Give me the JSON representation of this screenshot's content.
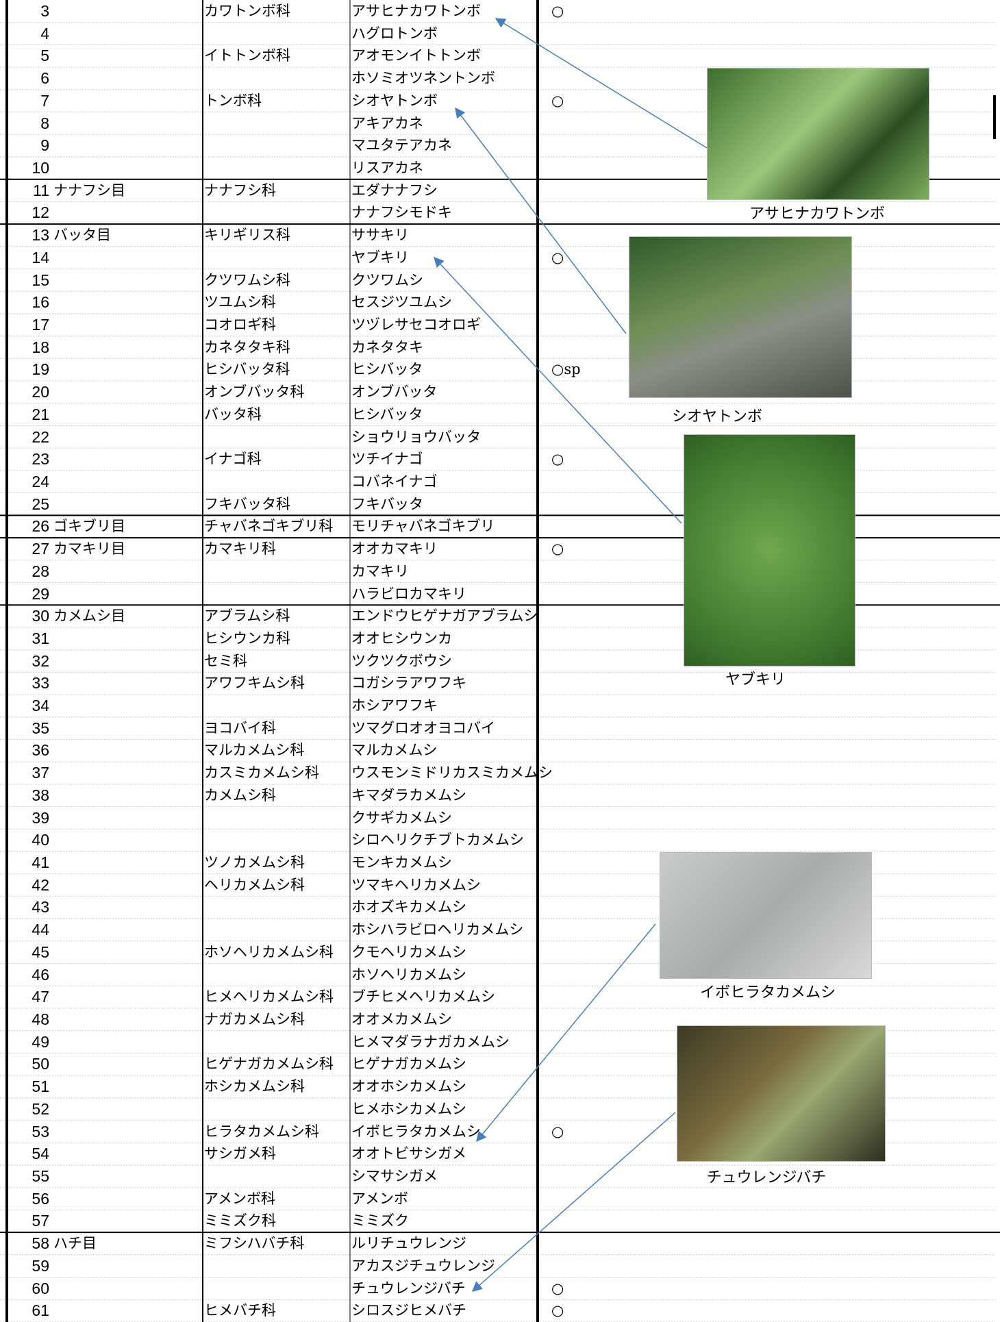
{
  "rows": [
    [
      3,
      null,
      "カワトンボ科",
      "アサヒナカワトンボ",
      "○"
    ],
    [
      4,
      null,
      null,
      "ハグロトンボ",
      null
    ],
    [
      5,
      null,
      "イトトンボ科",
      "アオモンイトトンボ",
      null
    ],
    [
      6,
      null,
      null,
      "ホソミオツネントンボ",
      null
    ],
    [
      7,
      null,
      "トンボ科",
      "シオヤトンボ",
      "○"
    ],
    [
      8,
      null,
      null,
      "アキアカネ",
      null
    ],
    [
      9,
      null,
      null,
      "マユタテアカネ",
      null
    ],
    [
      10,
      null,
      null,
      "リスアカネ",
      null
    ],
    [
      11,
      "ナナフシ目",
      "ナナフシ科",
      "エダナナフシ",
      null
    ],
    [
      12,
      null,
      null,
      "ナナフシモドキ",
      null
    ],
    [
      13,
      "バッタ目",
      "キリギリス科",
      "ササキリ",
      null
    ],
    [
      14,
      null,
      null,
      "ヤブキリ",
      "○"
    ],
    [
      15,
      null,
      "クツワムシ科",
      "クツワムシ",
      null
    ],
    [
      16,
      null,
      "ツユムシ科",
      "セスジツユムシ",
      null
    ],
    [
      17,
      null,
      "コオロギ科",
      "ツヅレサセコオロギ",
      null
    ],
    [
      18,
      null,
      "カネタタキ科",
      "カネタタキ",
      null
    ],
    [
      19,
      null,
      "ヒシバッタ科",
      "ヒシバッタ",
      "○sp"
    ],
    [
      20,
      null,
      "オンブバッタ科",
      "オンブバッタ",
      null
    ],
    [
      21,
      null,
      "バッタ科",
      "ヒシバッタ",
      null
    ],
    [
      22,
      null,
      null,
      "ショウリョウバッタ",
      null
    ],
    [
      23,
      null,
      "イナゴ科",
      "ツチイナゴ",
      "○"
    ],
    [
      24,
      null,
      null,
      "コバネイナゴ",
      null
    ],
    [
      25,
      null,
      "フキバッタ科",
      "フキバッタ",
      null
    ],
    [
      26,
      "ゴキブリ目",
      "チャバネゴキブリ科",
      "モリチャバネゴキブリ",
      null
    ],
    [
      27,
      "カマキリ目",
      "カマキリ科",
      "オオカマキリ",
      "○"
    ],
    [
      28,
      null,
      null,
      "カマキリ",
      null
    ],
    [
      29,
      null,
      null,
      "ハラビロカマキリ",
      null
    ],
    [
      30,
      "カメムシ目",
      "アブラムシ科",
      "エンドウヒゲナガアブラムシ",
      null
    ],
    [
      31,
      null,
      "ヒシウンカ科",
      "オオヒシウンカ",
      null
    ],
    [
      32,
      null,
      "セミ科",
      "ツクツクボウシ",
      null
    ],
    [
      33,
      null,
      "アワフキムシ科",
      "コガシラアワフキ",
      null
    ],
    [
      34,
      null,
      null,
      "ホシアワフキ",
      null
    ],
    [
      35,
      null,
      "ヨコバイ科",
      "ツマグロオオヨコバイ",
      null
    ],
    [
      36,
      null,
      "マルカメムシ科",
      "マルカメムシ",
      null
    ],
    [
      37,
      null,
      "カスミカメムシ科",
      "ウスモンミドリカスミカメムシ",
      null
    ],
    [
      38,
      null,
      "カメムシ科",
      "キマダラカメムシ",
      null
    ],
    [
      39,
      null,
      null,
      "クサギカメムシ",
      null
    ],
    [
      40,
      null,
      null,
      "シロヘリクチブトカメムシ",
      null
    ],
    [
      41,
      null,
      "ツノカメムシ科",
      "モンキカメムシ",
      null
    ],
    [
      42,
      null,
      "ヘリカメムシ科",
      "ツマキヘリカメムシ",
      null
    ],
    [
      43,
      null,
      null,
      "ホオズキカメムシ",
      null
    ],
    [
      44,
      null,
      null,
      "ホシハラビロヘリカメムシ",
      null
    ],
    [
      45,
      null,
      "ホソヘリカメムシ科",
      "クモヘリカメムシ",
      null
    ],
    [
      46,
      null,
      null,
      "ホソヘリカメムシ",
      null
    ],
    [
      47,
      null,
      "ヒメヘリカメムシ科",
      "ブチヒメヘリカメムシ",
      null
    ],
    [
      48,
      null,
      "ナガカメムシ科",
      "オオメカメムシ",
      null
    ],
    [
      49,
      null,
      null,
      "ヒメマダラナガカメムシ",
      null
    ],
    [
      50,
      null,
      "ヒゲナガカメムシ科",
      "ヒゲナガカメムシ",
      null
    ],
    [
      51,
      null,
      "ホシカメムシ科",
      "オオホシカメムシ",
      null
    ],
    [
      52,
      null,
      null,
      "ヒメホシカメムシ",
      null
    ],
    [
      53,
      null,
      "ヒラタカメムシ科",
      "イボヒラタカメムシ",
      "○"
    ],
    [
      54,
      null,
      "サシガメ科",
      "オオトビサシガメ",
      null
    ],
    [
      55,
      null,
      null,
      "シマサシガメ",
      null
    ],
    [
      56,
      null,
      "アメンボ科",
      "アメンボ",
      null
    ],
    [
      57,
      null,
      "ミミズク科",
      "ミミズク",
      null
    ],
    [
      58,
      "ハチ目",
      "ミフシハバチ科",
      "ルリチュウレンジ",
      null
    ],
    [
      59,
      null,
      null,
      "アカスジチュウレンジ",
      null
    ],
    [
      60,
      null,
      null,
      "チュウレンジバチ",
      "○"
    ],
    [
      61,
      null,
      "ヒメバチ科",
      "シロスジヒメバチ",
      "○"
    ]
  ],
  "photos": [
    {
      "caption": "アサヒナカワトンボ"
    },
    {
      "caption": "シオヤトンボ"
    },
    {
      "caption": "ヤブキリ"
    },
    {
      "caption": "イボヒラタカメムシ"
    },
    {
      "caption": "チュウレンジバチ"
    }
  ]
}
